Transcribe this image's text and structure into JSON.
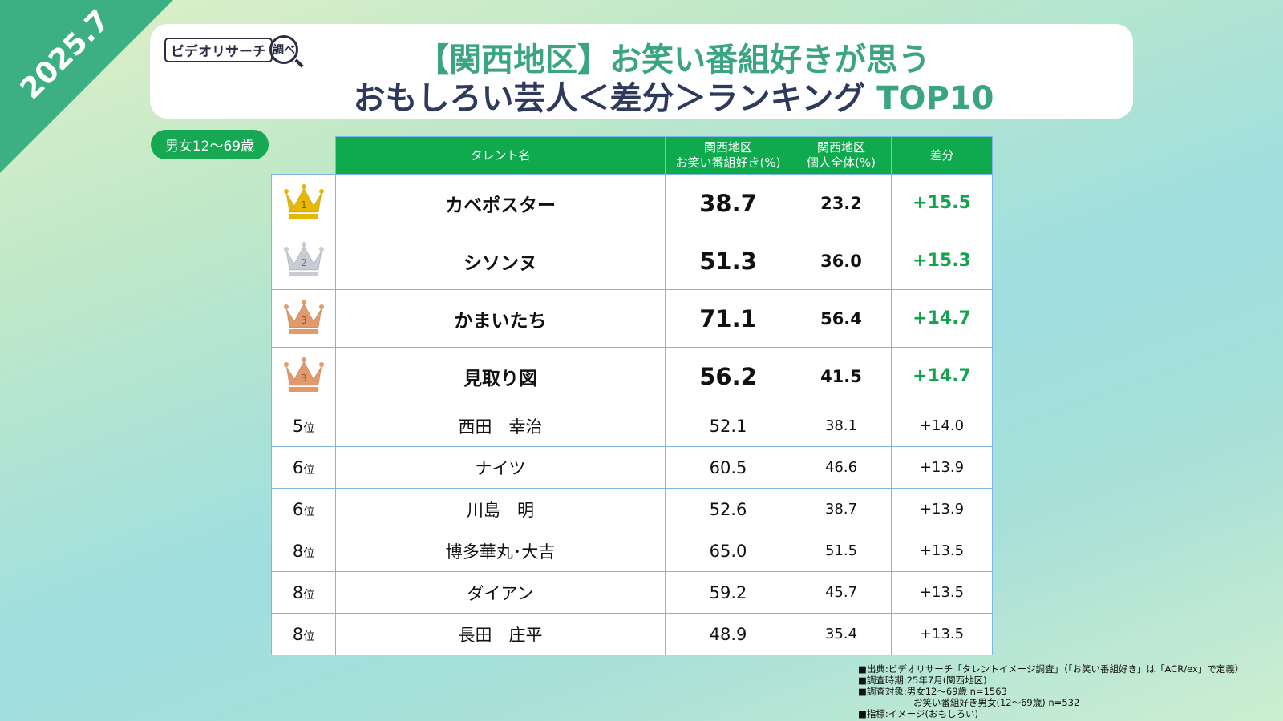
{
  "date_badge": "2025.7",
  "logo": {
    "text": "ビデオリサーチ",
    "lens": "調べ"
  },
  "title": {
    "line1": "【関西地区】お笑い番組好きが思う",
    "line2_main": "おもしろい芸人＜差分＞ランキング",
    "line2_accent": "TOP10"
  },
  "segment": "男女12～69歳",
  "colors": {
    "accent": "#3aa57e",
    "header_green": "#0faa4e",
    "diff_green": "#13a24e",
    "gold": "#e8b800",
    "silver": "#c8ccd4",
    "bronze": "#e39a6a"
  },
  "table": {
    "headers": [
      "タレント名",
      "関西地区\nお笑い番組好き(%)",
      "関西地区\n個人全体(%)",
      "差分"
    ],
    "headers_split": [
      [
        "タレント名"
      ],
      [
        "関西地区",
        "お笑い番組好き(%)"
      ],
      [
        "関西地区",
        "個人全体(%)"
      ],
      [
        "差分"
      ]
    ],
    "rows": [
      {
        "rank": "1",
        "medal": "gold",
        "name": "カベポスター",
        "v1": "38.7",
        "v2": "23.2",
        "diff": "+15.5"
      },
      {
        "rank": "2",
        "medal": "silver",
        "name": "シソンヌ",
        "v1": "51.3",
        "v2": "36.0",
        "diff": "+15.3"
      },
      {
        "rank": "3",
        "medal": "bronze",
        "name": "かまいたち",
        "v1": "71.1",
        "v2": "56.4",
        "diff": "+14.7"
      },
      {
        "rank": "3",
        "medal": "bronze",
        "name": "見取り図",
        "v1": "56.2",
        "v2": "41.5",
        "diff": "+14.7"
      },
      {
        "rank": "5",
        "suffix": "位",
        "name": "西田　幸治",
        "v1": "52.1",
        "v2": "38.1",
        "diff": "+14.0"
      },
      {
        "rank": "6",
        "suffix": "位",
        "name": "ナイツ",
        "v1": "60.5",
        "v2": "46.6",
        "diff": "+13.9"
      },
      {
        "rank": "6",
        "suffix": "位",
        "name": "川島　明",
        "v1": "52.6",
        "v2": "38.7",
        "diff": "+13.9"
      },
      {
        "rank": "8",
        "suffix": "位",
        "name": "博多華丸･大吉",
        "v1": "65.0",
        "v2": "51.5",
        "diff": "+13.5"
      },
      {
        "rank": "8",
        "suffix": "位",
        "name": "ダイアン",
        "v1": "59.2",
        "v2": "45.7",
        "diff": "+13.5"
      },
      {
        "rank": "8",
        "suffix": "位",
        "name": "長田　庄平",
        "v1": "48.9",
        "v2": "35.4",
        "diff": "+13.5"
      }
    ]
  },
  "notes": [
    "■出典:ビデオリサーチ「タレントイメージ調査」（「お笑い番組好き」は「ACR/ex」で定義）",
    "■調査時期:25年7月(関西地区)",
    "■調査対象:男女12～69歳 n=1563",
    "　　　　　　お笑い番組好き男女(12～69歳) n=532",
    "■指標:イメージ(おもしろい)"
  ]
}
